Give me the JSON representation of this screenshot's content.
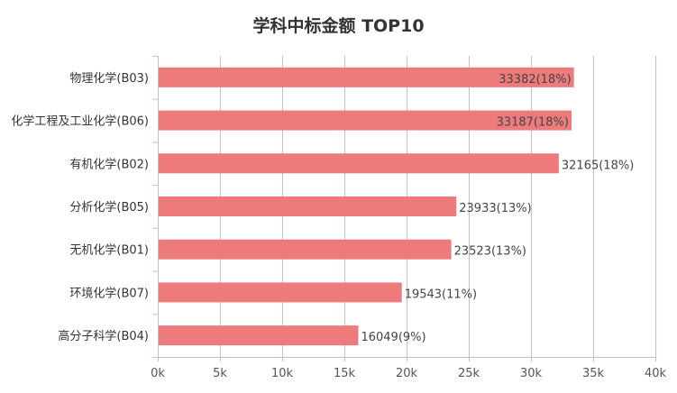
{
  "chart_data": {
    "type": "bar",
    "orientation": "horizontal",
    "title": "学科中标金额 TOP10",
    "categories": [
      "物理化学(B03)",
      "化学工程及工业化学(B06)",
      "有机化学(B02)",
      "分析化学(B05)",
      "无机化学(B01)",
      "环境化学(B07)",
      "高分子科学(B04)"
    ],
    "values": [
      33382,
      33187,
      32165,
      23933,
      23523,
      19543,
      16049
    ],
    "value_labels": [
      "33382(18%)",
      "33187(18%)",
      "32165(18%)",
      "23933(13%)",
      "23523(13%)",
      "19543(11%)",
      "16049(9%)"
    ],
    "xlim": [
      0,
      40000
    ],
    "x_ticks": [
      0,
      5000,
      10000,
      15000,
      20000,
      25000,
      30000,
      35000,
      40000
    ],
    "x_tick_labels": [
      "0k",
      "5k",
      "10k",
      "15k",
      "20k",
      "25k",
      "30k",
      "35k",
      "40k"
    ],
    "xlabel": "",
    "ylabel": "",
    "grid": "vertical",
    "bar_color": "#ed7b7b",
    "grid_color": "#b8c2d0"
  }
}
